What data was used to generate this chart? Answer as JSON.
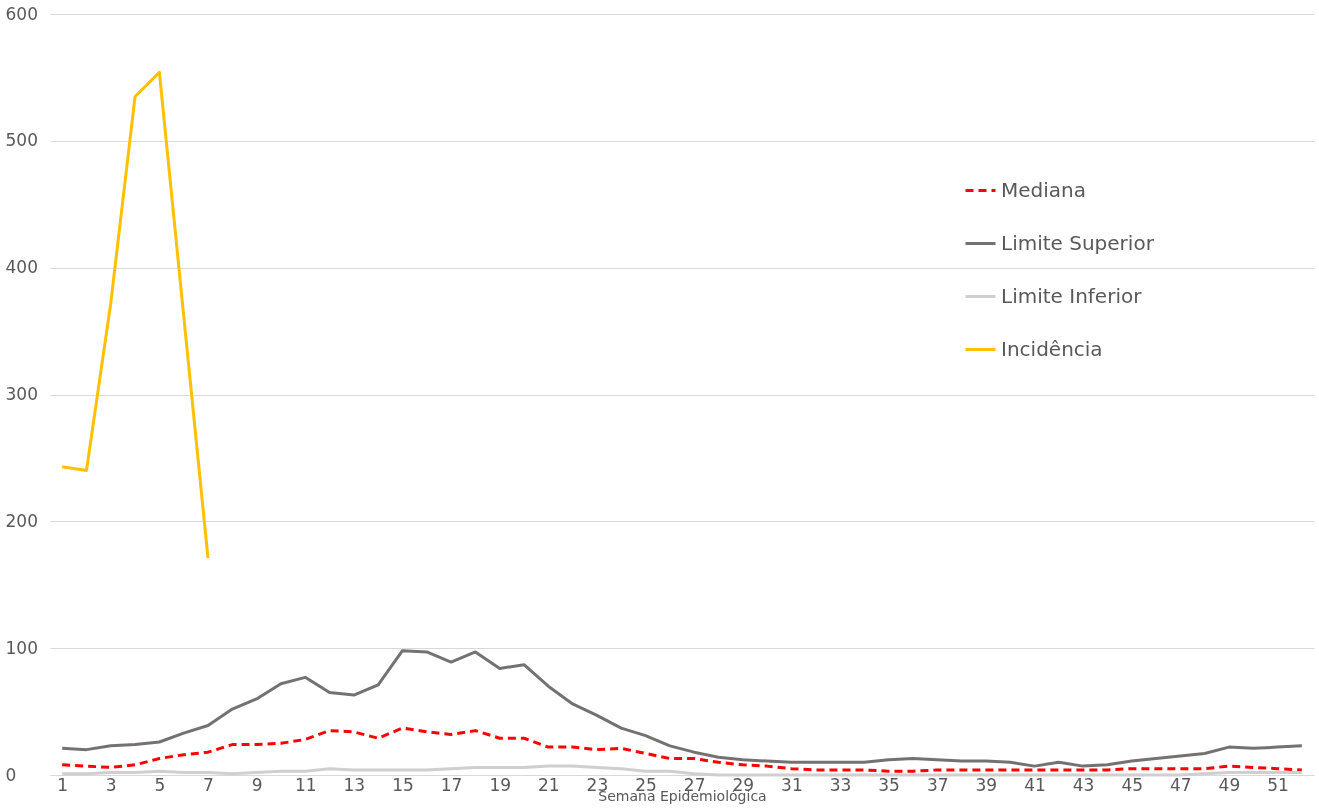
{
  "chart_data": {
    "type": "line",
    "xlabel": "Semana Epidemiológica",
    "x": [
      1,
      2,
      3,
      4,
      5,
      6,
      7,
      8,
      9,
      10,
      11,
      12,
      13,
      14,
      15,
      16,
      17,
      18,
      19,
      20,
      21,
      22,
      23,
      24,
      25,
      26,
      27,
      28,
      29,
      30,
      31,
      32,
      33,
      34,
      35,
      36,
      37,
      38,
      39,
      40,
      41,
      42,
      43,
      44,
      45,
      46,
      47,
      48,
      49,
      50,
      51,
      52
    ],
    "xlim": [
      0.5,
      52.5
    ],
    "xticks": [
      1,
      3,
      5,
      7,
      9,
      11,
      13,
      15,
      17,
      19,
      21,
      23,
      25,
      27,
      29,
      31,
      33,
      35,
      37,
      39,
      41,
      43,
      45,
      47,
      49,
      51
    ],
    "ylim": [
      0,
      600
    ],
    "yticks": [
      0,
      100,
      200,
      300,
      400,
      500,
      600
    ],
    "grid": "y",
    "legend": "top right",
    "series": [
      {
        "name": "Mediana",
        "color": "#ff0000",
        "line_style": "dashed",
        "values": [
          8,
          7,
          6,
          8,
          13,
          16,
          18,
          24,
          24,
          25,
          28,
          35,
          34,
          29,
          37,
          34,
          32,
          35,
          29,
          29,
          22,
          22,
          20,
          21,
          17,
          13,
          13,
          10,
          8,
          7,
          5,
          4,
          4,
          4,
          3,
          3,
          4,
          4,
          4,
          4,
          4,
          4,
          4,
          4,
          5,
          5,
          5,
          5,
          7,
          6,
          5,
          4
        ]
      },
      {
        "name": "Limite Superior",
        "color": "#767171",
        "line_style": "solid",
        "values": [
          21,
          20,
          23,
          24,
          26,
          33,
          39,
          52,
          60,
          72,
          77,
          65,
          63,
          71,
          98,
          97,
          89,
          97,
          84,
          87,
          70,
          56,
          47,
          37,
          31,
          23,
          18,
          14,
          12,
          11,
          10,
          10,
          10,
          10,
          12,
          13,
          12,
          11,
          11,
          10,
          7,
          10,
          7,
          8,
          11,
          13,
          15,
          17,
          22,
          21,
          22,
          23
        ]
      },
      {
        "name": "Limite Inferior",
        "color": "#d0cece",
        "line_style": "solid",
        "values": [
          1,
          1,
          2,
          2,
          3,
          2,
          2,
          1,
          2,
          3,
          3,
          5,
          4,
          4,
          4,
          4,
          5,
          6,
          6,
          6,
          7,
          7,
          6,
          5,
          3,
          3,
          1,
          0,
          0,
          0,
          0,
          0,
          0,
          0,
          0,
          0,
          0,
          0,
          0,
          0,
          0,
          0,
          0,
          0,
          0,
          0,
          0,
          1,
          2,
          2,
          2,
          2
        ]
      },
      {
        "name": "Incidência",
        "color": "#ffc000",
        "line_style": "solid",
        "x": [
          1,
          2,
          3,
          4,
          5,
          6,
          7
        ],
        "values": [
          243,
          240,
          372,
          535,
          554,
          362,
          171
        ]
      }
    ]
  }
}
